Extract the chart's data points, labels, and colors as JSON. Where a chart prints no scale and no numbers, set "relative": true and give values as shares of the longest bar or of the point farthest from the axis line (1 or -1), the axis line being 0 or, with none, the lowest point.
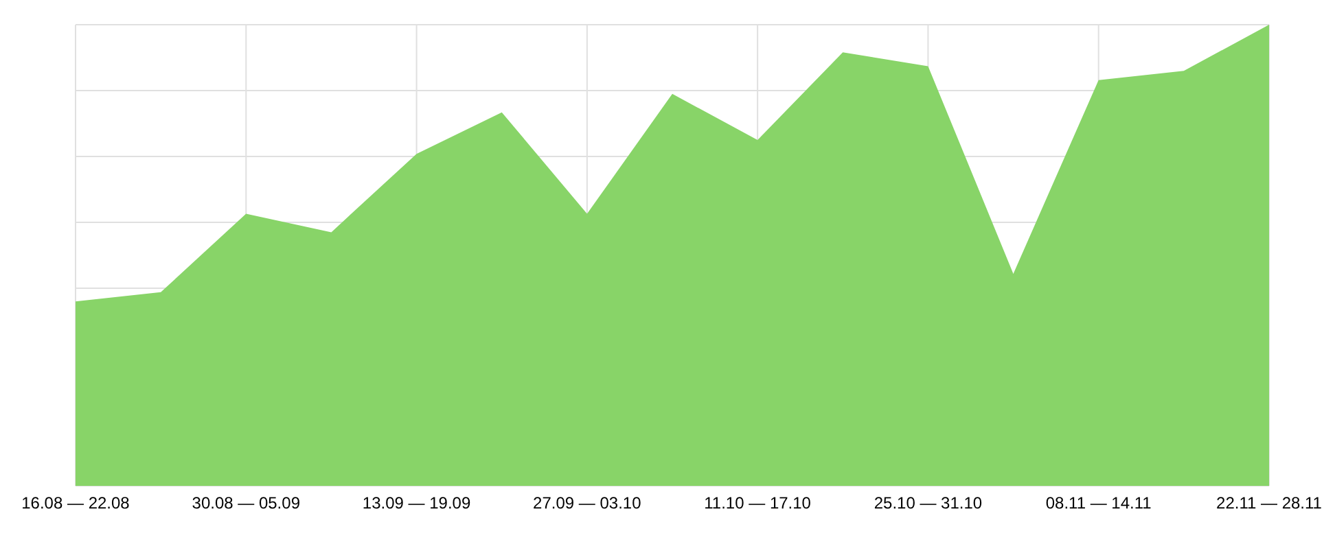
{
  "chart_data": {
    "type": "area",
    "relative": true,
    "grid": true,
    "color": "#88d468",
    "categories": [
      "16.08 — 22.08",
      null,
      "30.08 — 05.09",
      null,
      "13.09 — 19.09",
      null,
      "27.09 — 03.10",
      null,
      "11.10 — 17.10",
      null,
      "25.10 — 31.10",
      null,
      "08.11 — 14.11",
      null,
      "22.11 — 28.11"
    ],
    "values": [
      0.4,
      0.42,
      0.59,
      0.55,
      0.72,
      0.81,
      0.59,
      0.85,
      0.75,
      0.94,
      0.91,
      0.46,
      0.88,
      0.9,
      1
    ]
  }
}
